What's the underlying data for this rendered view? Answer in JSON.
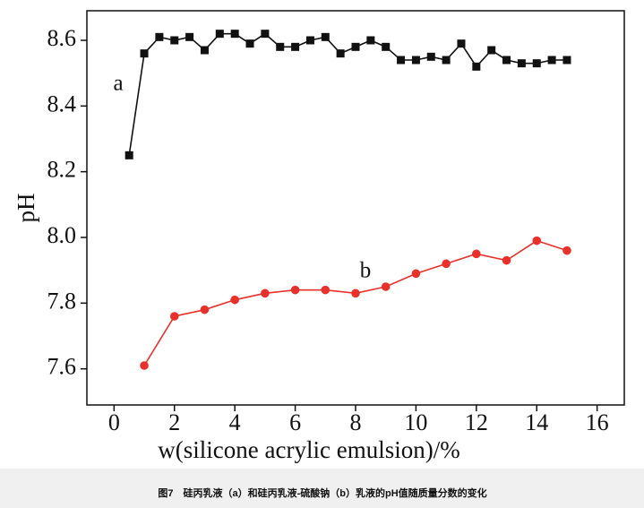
{
  "chart_data": {
    "type": "line",
    "xlabel": "w(silicone acrylic emulsion)/%",
    "ylabel": "pH",
    "caption": "图7　硅丙乳液（a）和硅丙乳液-硫酸钠（b）乳液的pH值随质量分数的变化",
    "annotations": [
      "a",
      "b"
    ],
    "xlim": [
      -0.9,
      16.9
    ],
    "ylim": [
      7.49,
      8.69
    ],
    "xticks": [
      0,
      2,
      4,
      6,
      8,
      10,
      12,
      14,
      16
    ],
    "yticks": [
      7.6,
      7.8,
      {
        "value": 8,
        "label": "8.0"
      },
      8.2,
      8.4,
      8.6
    ],
    "series": [
      {
        "marker": "square",
        "color": "#111111",
        "x": [
          0.5,
          1,
          1.5,
          2,
          2.5,
          3,
          3.5,
          4,
          4.5,
          5,
          5.5,
          6,
          6.5,
          7,
          7.5,
          8,
          8.5,
          9,
          9.5,
          10,
          10.5,
          11,
          11.5,
          12,
          12.5,
          13,
          13.5,
          14,
          14.5,
          15
        ],
        "values": [
          8.25,
          8.56,
          8.61,
          8.6,
          8.61,
          8.57,
          8.62,
          8.62,
          8.59,
          8.62,
          8.58,
          8.58,
          8.6,
          8.61,
          8.56,
          8.58,
          8.6,
          8.58,
          8.54,
          8.54,
          8.55,
          8.54,
          8.59,
          8.52,
          8.57,
          8.54,
          8.53,
          8.53,
          8.54,
          8.54
        ]
      },
      {
        "marker": "circle",
        "color": "#e8312a",
        "x": [
          1,
          2,
          3,
          4,
          5,
          6,
          7,
          8,
          9,
          10,
          11,
          12,
          13,
          14,
          15
        ],
        "values": [
          7.61,
          7.76,
          7.78,
          7.81,
          7.83,
          7.84,
          7.84,
          7.83,
          7.85,
          7.89,
          7.92,
          7.95,
          7.93,
          7.99,
          7.96
        ]
      }
    ]
  }
}
